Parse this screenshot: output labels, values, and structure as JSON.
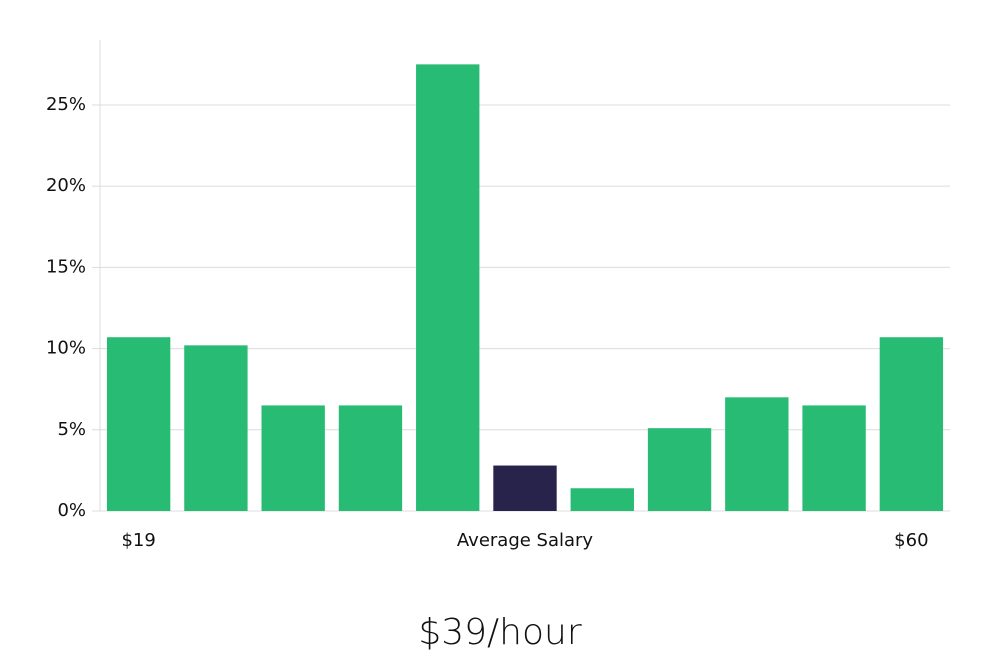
{
  "chart_data": {
    "type": "bar",
    "categories": [
      "$19",
      null,
      null,
      null,
      null,
      "Average Salary",
      null,
      null,
      null,
      null,
      "$60"
    ],
    "values": [
      10.7,
      10.2,
      6.5,
      6.5,
      27.5,
      2.8,
      1.4,
      5.1,
      7.0,
      6.5,
      10.7
    ],
    "colors": [
      "#27bb74",
      "#27bb74",
      "#27bb74",
      "#27bb74",
      "#27bb74",
      "#28234a",
      "#27bb74",
      "#27bb74",
      "#27bb74",
      "#27bb74",
      "#27bb74"
    ],
    "ylim": [
      0,
      29
    ],
    "yticks": [
      {
        "value": 0,
        "label": "0%"
      },
      {
        "value": 5,
        "label": "5%"
      },
      {
        "value": 10,
        "label": "10%"
      },
      {
        "value": 15,
        "label": "15%"
      },
      {
        "value": 20,
        "label": "20%"
      },
      {
        "value": 25,
        "label": "25%"
      }
    ],
    "grid": true,
    "average_label": "$39/hour"
  }
}
